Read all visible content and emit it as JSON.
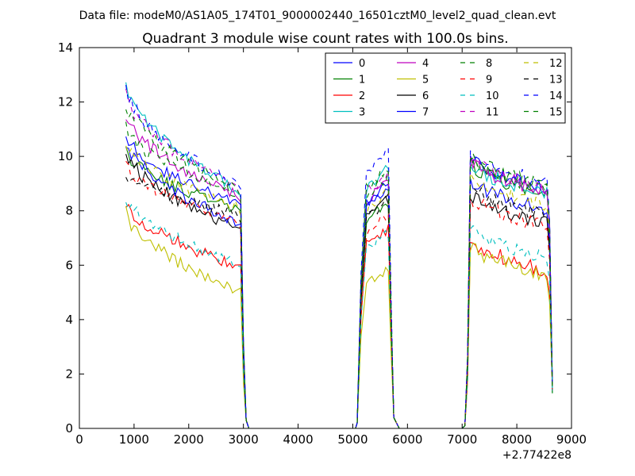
{
  "chart_data": {
    "type": "line",
    "suptitle": "Data file: modeM0/AS1A05_174T01_9000002440_16501cztM0_level2_quad_clean.evt",
    "title": "Quadrant 3 module wise count rates with 100.0s bins.",
    "xlabel": "",
    "ylabel": "",
    "x_offset_label": "+2.77422e8",
    "xlim": [
      0,
      9000
    ],
    "ylim": [
      0,
      14
    ],
    "xticks": [
      0,
      1000,
      2000,
      3000,
      4000,
      5000,
      6000,
      7000,
      8000,
      9000
    ],
    "xtick_labels": [
      "0",
      "1000",
      "2000",
      "3000",
      "4000",
      "5000",
      "6000",
      "7000",
      "8000",
      "9000"
    ],
    "yticks": [
      0,
      2,
      4,
      6,
      8,
      10,
      12,
      14
    ],
    "ytick_labels": [
      "0",
      "2",
      "4",
      "6",
      "8",
      "10",
      "12",
      "14"
    ],
    "grid": false,
    "legend_position": "top-right",
    "legend_columns": 4,
    "segments": [
      {
        "start": 850,
        "end": 2850
      },
      {
        "start": 5100,
        "end": 5650
      },
      {
        "start": 7100,
        "end": 8550
      }
    ],
    "series": [
      {
        "name": "0",
        "color": "#0000ff",
        "style": "solid",
        "levels": [
          10.8,
          8.3,
          9.2,
          8.8
        ]
      },
      {
        "name": "1",
        "color": "#008000",
        "style": "solid",
        "levels": [
          10.2,
          8.1,
          8.5,
          8.6
        ]
      },
      {
        "name": "2",
        "color": "#ff0000",
        "style": "solid",
        "levels": [
          8.3,
          6.0,
          7.5,
          5.8
        ]
      },
      {
        "name": "3",
        "color": "#00bfbf",
        "style": "solid",
        "levels": [
          12.7,
          8.8,
          9.8,
          8.6
        ]
      },
      {
        "name": "4",
        "color": "#bf00bf",
        "style": "solid",
        "levels": [
          11.5,
          8.6,
          9.3,
          8.7
        ]
      },
      {
        "name": "5",
        "color": "#bfbf00",
        "style": "solid",
        "levels": [
          8.0,
          5.1,
          6.0,
          5.6
        ]
      },
      {
        "name": "6",
        "color": "#000000",
        "style": "solid",
        "levels": [
          10.2,
          7.4,
          8.6,
          7.5
        ]
      },
      {
        "name": "7",
        "color": "#0000ff",
        "style": "solid",
        "levels": [
          10.6,
          7.6,
          9.1,
          8.0
        ]
      },
      {
        "name": "8",
        "color": "#008000",
        "style": "dashed",
        "levels": [
          11.0,
          8.7,
          9.5,
          8.8
        ]
      },
      {
        "name": "9",
        "color": "#ff0000",
        "style": "dashed",
        "levels": [
          9.8,
          7.6,
          8.0,
          7.4
        ]
      },
      {
        "name": "10",
        "color": "#00bfbf",
        "style": "dashed",
        "levels": [
          8.5,
          6.1,
          7.3,
          6.3
        ]
      },
      {
        "name": "11",
        "color": "#bf00bf",
        "style": "dashed",
        "levels": [
          12.3,
          8.9,
          9.6,
          8.8
        ]
      },
      {
        "name": "12",
        "color": "#bfbf00",
        "style": "dashed",
        "levels": [
          10.5,
          8.2,
          8.9,
          8.2
        ]
      },
      {
        "name": "13",
        "color": "#000000",
        "style": "dashed",
        "levels": [
          9.4,
          7.9,
          8.6,
          7.8
        ]
      },
      {
        "name": "14",
        "color": "#0000ff",
        "style": "dashed",
        "levels": [
          12.5,
          9.0,
          10.4,
          9.0
        ]
      },
      {
        "name": "15",
        "color": "#008000",
        "style": "dashed",
        "levels": [
          12.0,
          8.9,
          9.8,
          8.9
        ]
      }
    ]
  }
}
